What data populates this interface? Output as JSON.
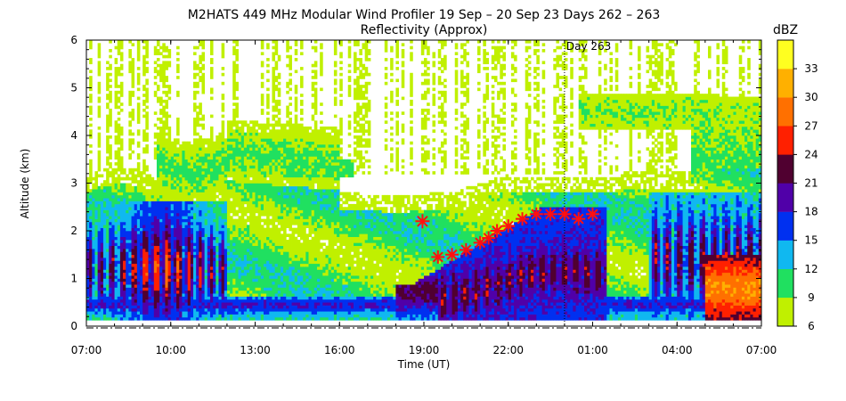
{
  "chart_data": {
    "type": "heatmap",
    "title": "M2HATS 449 MHz Modular Wind Profiler  19 Sep – 20 Sep 23 Days 262 – 263",
    "subtitle": "Reflectivity (Approx)",
    "xlabel": "Time (UT)",
    "ylabel": "Altitude (km)",
    "xlim": [
      0,
      24
    ],
    "ylim": [
      0,
      6
    ],
    "x_ticks": [
      {
        "pos": 0,
        "label": "07:00"
      },
      {
        "pos": 3,
        "label": "10:00"
      },
      {
        "pos": 6,
        "label": "13:00"
      },
      {
        "pos": 9,
        "label": "16:00"
      },
      {
        "pos": 12,
        "label": "19:00"
      },
      {
        "pos": 15,
        "label": "22:00"
      },
      {
        "pos": 18,
        "label": "01:00"
      },
      {
        "pos": 21,
        "label": "04:00"
      },
      {
        "pos": 24,
        "label": "07:00"
      }
    ],
    "y_ticks": [
      "0",
      "1",
      "2",
      "3",
      "4",
      "5",
      "6"
    ],
    "day_marker": {
      "pos": 17,
      "label": "Day 263"
    },
    "colorbar": {
      "label": "dBZ",
      "ticks": [
        "6",
        "9",
        "12",
        "15",
        "18",
        "21",
        "24",
        "27",
        "30",
        "33"
      ],
      "colors": [
        "#c0f000",
        "#20e060",
        "#10b8f0",
        "#0030f0",
        "#5000a8",
        "#500030",
        "#ff2000",
        "#ff7000",
        "#ffb000",
        "#ffff20"
      ]
    },
    "markers": [
      {
        "x": 11.95,
        "y": 2.2
      },
      {
        "x": 12.5,
        "y": 1.45
      },
      {
        "x": 13.0,
        "y": 1.5
      },
      {
        "x": 13.5,
        "y": 1.6
      },
      {
        "x": 14.0,
        "y": 1.75
      },
      {
        "x": 14.3,
        "y": 1.85
      },
      {
        "x": 14.6,
        "y": 2.0
      },
      {
        "x": 15.0,
        "y": 2.1
      },
      {
        "x": 15.5,
        "y": 2.25
      },
      {
        "x": 16.0,
        "y": 2.35
      },
      {
        "x": 16.5,
        "y": 2.35
      },
      {
        "x": 17.0,
        "y": 2.35
      },
      {
        "x": 17.5,
        "y": 2.25
      },
      {
        "x": 18.0,
        "y": 2.35
      }
    ]
  }
}
